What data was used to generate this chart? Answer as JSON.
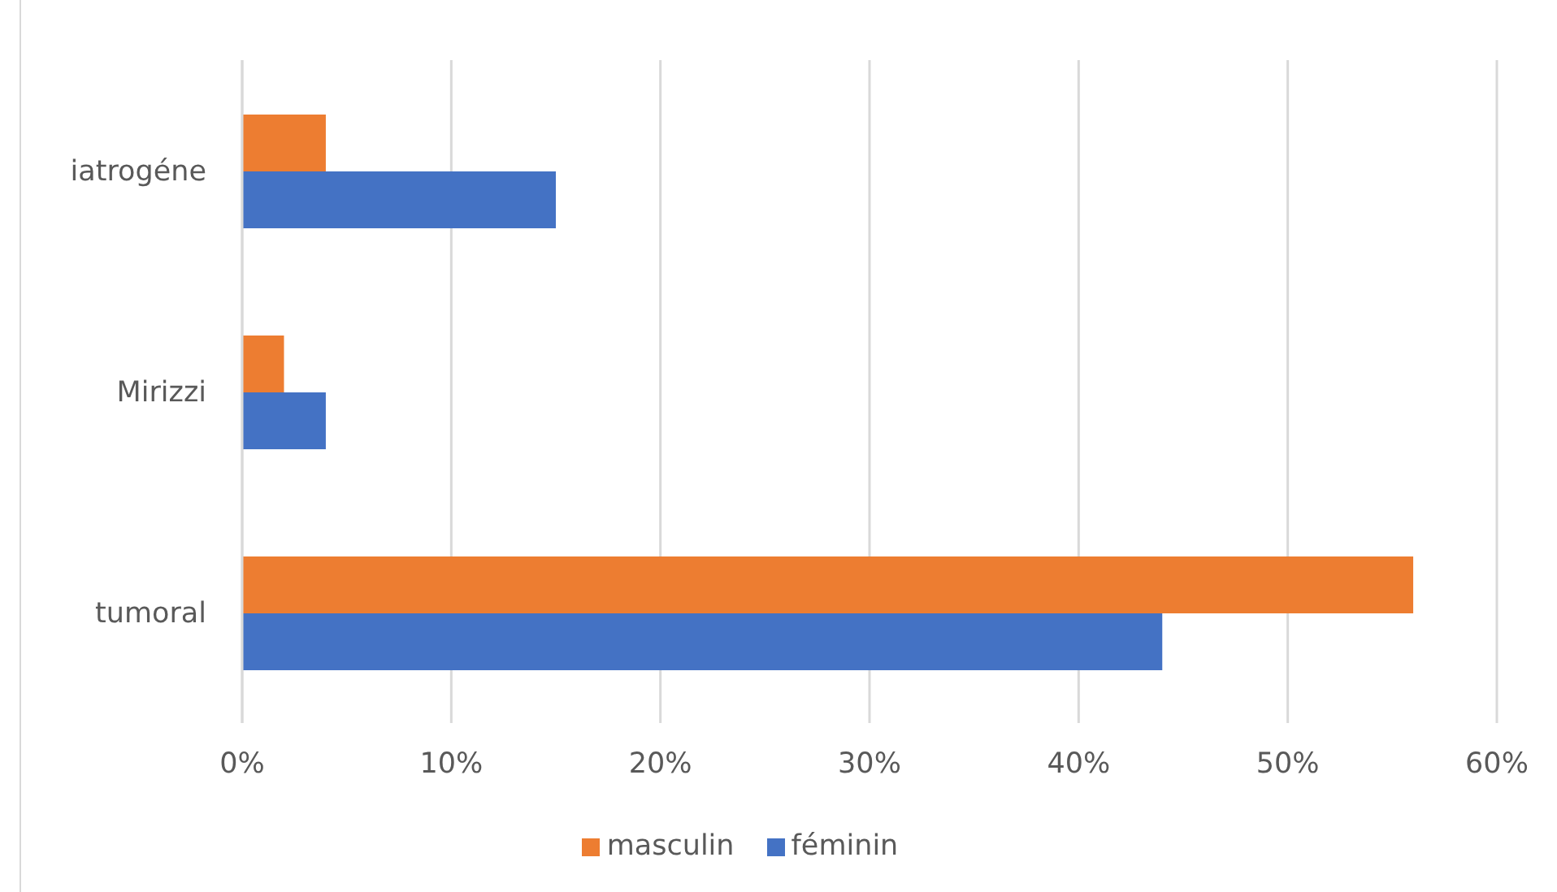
{
  "chart_data": {
    "type": "bar",
    "orientation": "horizontal",
    "categories": [
      "iatrogéne",
      "Mirizzi",
      "tumoral"
    ],
    "series": [
      {
        "name": "masculin",
        "color": "#ed7d31",
        "values": [
          4,
          2,
          56
        ]
      },
      {
        "name": "féminin",
        "color": "#4472c4",
        "values": [
          15,
          4,
          44
        ]
      }
    ],
    "xlim": [
      0,
      60
    ],
    "xticks": [
      {
        "value": 0,
        "label": "0%"
      },
      {
        "value": 10,
        "label": "10%"
      },
      {
        "value": 20,
        "label": "20%"
      },
      {
        "value": 30,
        "label": "30%"
      },
      {
        "value": 40,
        "label": "40%"
      },
      {
        "value": 50,
        "label": "50%"
      },
      {
        "value": 60,
        "label": "60%"
      }
    ],
    "grid": "x",
    "legend": "bottom"
  }
}
